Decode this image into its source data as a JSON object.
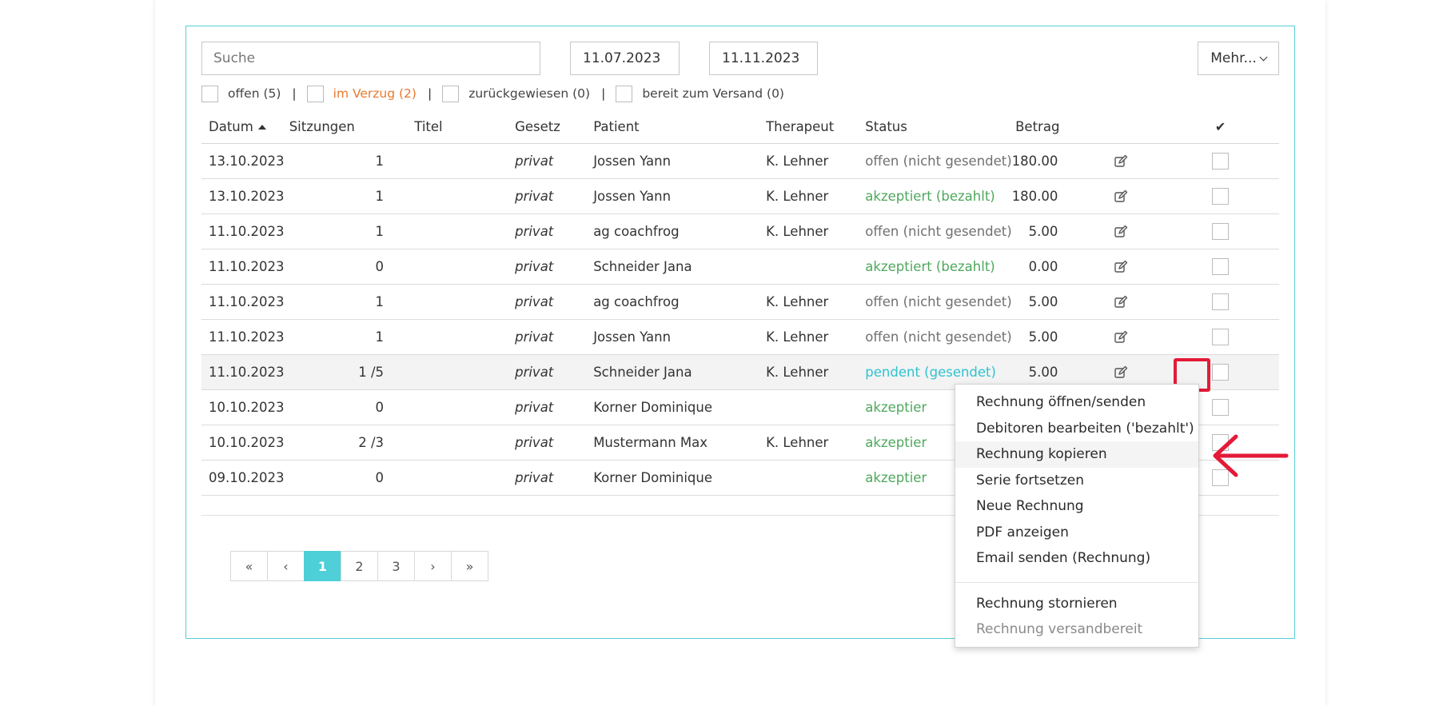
{
  "search": {
    "placeholder": "Suche"
  },
  "date_from": "11.07.2023",
  "date_to": "11.11.2023",
  "more_button": "Mehr...",
  "filters": [
    {
      "label": "offen (5)"
    },
    {
      "label": "im Verzug (2)"
    },
    {
      "label": "zurückgewiesen (0)"
    },
    {
      "label": "bereit zum Versand (0)"
    }
  ],
  "filter_separator": "|",
  "table": {
    "headers": {
      "date": "Datum",
      "sessions": "Sitzungen",
      "title": "Titel",
      "law": "Gesetz",
      "patient": "Patient",
      "therapist": "Therapeut",
      "status": "Status",
      "amount": "Betrag",
      "check": "✔"
    },
    "rows": [
      {
        "date": "13.10.2023",
        "sessions": "1",
        "law": "privat",
        "patient": "Jossen Yann",
        "therapist": "K. Lehner",
        "status": "offen (nicht gesendet)",
        "status_type": "open",
        "amount": "180.00"
      },
      {
        "date": "13.10.2023",
        "sessions": "1",
        "law": "privat",
        "patient": "Jossen Yann",
        "therapist": "K. Lehner",
        "status": "akzeptiert (bezahlt)",
        "status_type": "accepted",
        "amount": "180.00"
      },
      {
        "date": "11.10.2023",
        "sessions": "1",
        "law": "privat",
        "patient": "ag coachfrog",
        "therapist": "K. Lehner",
        "status": "offen (nicht gesendet)",
        "status_type": "open",
        "amount": "5.00"
      },
      {
        "date": "11.10.2023",
        "sessions": "0",
        "law": "privat",
        "patient": "Schneider Jana",
        "therapist": "",
        "status": "akzeptiert (bezahlt)",
        "status_type": "accepted",
        "amount": "0.00"
      },
      {
        "date": "11.10.2023",
        "sessions": "1",
        "law": "privat",
        "patient": "ag coachfrog",
        "therapist": "K. Lehner",
        "status": "offen (nicht gesendet)",
        "status_type": "open",
        "amount": "5.00"
      },
      {
        "date": "11.10.2023",
        "sessions": "1",
        "law": "privat",
        "patient": "Jossen Yann",
        "therapist": "K. Lehner",
        "status": "offen (nicht gesendet)",
        "status_type": "open",
        "amount": "5.00"
      },
      {
        "date": "11.10.2023",
        "sessions": "1 /5",
        "law": "privat",
        "patient": "Schneider Jana",
        "therapist": "K. Lehner",
        "status": "pendent (gesendet)",
        "status_type": "pending",
        "amount": "5.00"
      },
      {
        "date": "10.10.2023",
        "sessions": "0",
        "law": "privat",
        "patient": "Korner Dominique",
        "therapist": "",
        "status": "akzeptier",
        "status_type": "accepted",
        "amount": ""
      },
      {
        "date": "10.10.2023",
        "sessions": "2 /3",
        "law": "privat",
        "patient": "Mustermann Max",
        "therapist": "K. Lehner",
        "status": "akzeptier",
        "status_type": "accepted",
        "amount": ""
      },
      {
        "date": "09.10.2023",
        "sessions": "0",
        "law": "privat",
        "patient": "Korner Dominique",
        "therapist": "",
        "status": "akzeptier",
        "status_type": "accepted",
        "amount": ""
      }
    ]
  },
  "pagination": [
    "«",
    "‹",
    "1",
    "2",
    "3",
    "›",
    "»"
  ],
  "pagination_active": "1",
  "context_menu": {
    "items": [
      "Rechnung öffnen/senden",
      "Debitoren bearbeiten ('bezahlt')",
      "Rechnung kopieren",
      "Serie fortsetzen",
      "Neue Rechnung",
      "PDF anzeigen",
      "Email senden (Rechnung)"
    ],
    "hovered": "Rechnung kopieren",
    "items_after_divider": [
      {
        "label": "Rechnung stornieren",
        "disabled": false
      },
      {
        "label": "Rechnung versandbereit",
        "disabled": true
      }
    ]
  },
  "colors": {
    "accent": "#4fcfd8",
    "accepted": "#4ea85c",
    "pending": "#2ec3d0",
    "overdue": "#e8792b",
    "annotation": "#e41a37"
  }
}
